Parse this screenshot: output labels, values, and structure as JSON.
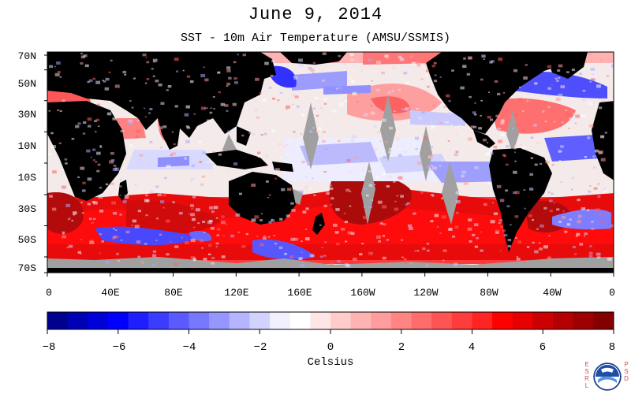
{
  "title": "June 9, 2014",
  "subtitle": "SST - 10m Air Temperature (AMSU/SSMIS)",
  "lat_labels": [
    "70N",
    "50N",
    "30N",
    "10N",
    "10S",
    "30S",
    "50S",
    "70S"
  ],
  "lon_labels": [
    "0",
    "40E",
    "80E",
    "120E",
    "160E",
    "160W",
    "120W",
    "80W",
    "40W",
    "0"
  ],
  "colorbar": {
    "tick_labels": [
      "−8",
      "−6",
      "−4",
      "−2",
      "0",
      "2",
      "4",
      "6",
      "8"
    ],
    "label": "Celsius",
    "min": -8,
    "max": 8,
    "colors": [
      "#00008f",
      "#0000b4",
      "#0000d9",
      "#0000ff",
      "#1e1eff",
      "#3c3cff",
      "#5a5aff",
      "#7878ff",
      "#9696ff",
      "#b4b4ff",
      "#d2d2ff",
      "#f0f0ff",
      "#ffffff",
      "#ffe6e6",
      "#ffcccc",
      "#ffb4b4",
      "#ff9c9c",
      "#ff8484",
      "#ff6c6c",
      "#ff5454",
      "#ff3c3c",
      "#ff2424",
      "#ff0000",
      "#e60000",
      "#cc0000",
      "#b40000",
      "#9c0000",
      "#840000"
    ]
  },
  "map_colors": {
    "land": "#000000",
    "no_data": "#a0a0a0"
  },
  "logo": {
    "left_letters": "E S R L",
    "right_letters": "P S D",
    "seal_text": "NOAA"
  }
}
